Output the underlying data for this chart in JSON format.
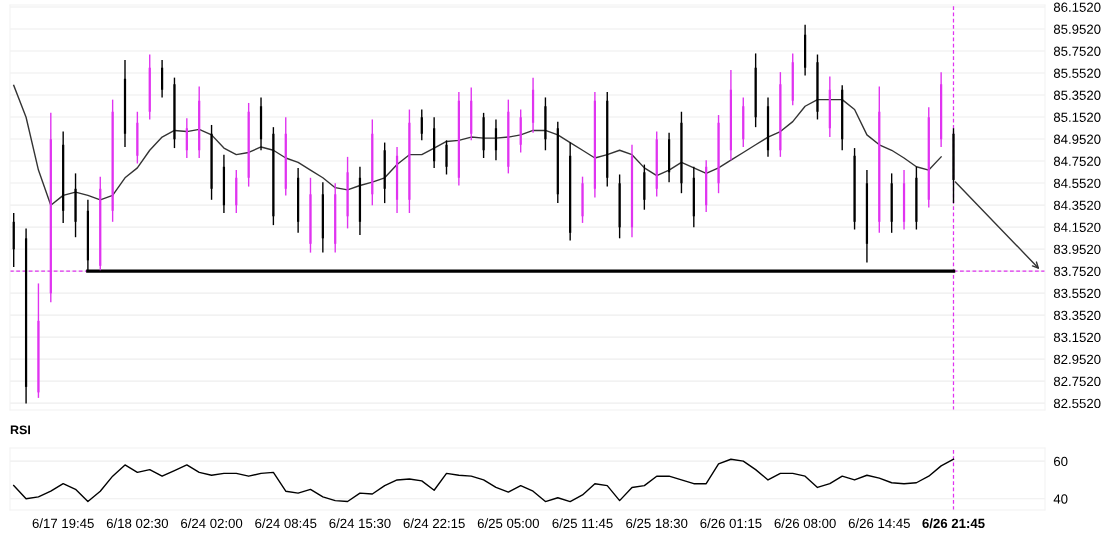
{
  "chart_data": [
    {
      "type": "candlestick",
      "categories": [
        null,
        null,
        null,
        null,
        null,
        null,
        null,
        null,
        null,
        null,
        null,
        null,
        null,
        null,
        null,
        null,
        null,
        null,
        null,
        null,
        null,
        null,
        null,
        null,
        null,
        null,
        null,
        null,
        null,
        null,
        null,
        null,
        null,
        null,
        null,
        null,
        null,
        null,
        null,
        null,
        null,
        null,
        null,
        null,
        null,
        null,
        null,
        null,
        null,
        null,
        null,
        null,
        null,
        null,
        null,
        null,
        null,
        null,
        null,
        null,
        null,
        null,
        null,
        null,
        null,
        null,
        null,
        null,
        null,
        null,
        null,
        null,
        null,
        null,
        null,
        null,
        null
      ],
      "ohlc": [
        [
          84.2,
          84.28,
          83.79,
          83.95
        ],
        [
          84.05,
          84.14,
          82.55,
          82.7
        ],
        [
          82.65,
          83.64,
          82.6,
          83.3
        ],
        [
          83.55,
          85.19,
          83.47,
          84.95
        ],
        [
          84.9,
          85.02,
          84.19,
          84.3
        ],
        [
          84.5,
          84.64,
          84.06,
          84.2
        ],
        [
          84.3,
          84.4,
          83.76,
          83.85
        ],
        [
          83.8,
          84.61,
          83.76,
          84.5
        ],
        [
          84.3,
          85.31,
          84.2,
          85.2
        ],
        [
          85.5,
          85.67,
          84.88,
          85.0
        ],
        [
          84.8,
          85.2,
          84.73,
          85.1
        ],
        [
          85.2,
          85.72,
          85.13,
          85.6
        ],
        [
          85.6,
          85.67,
          85.33,
          85.4
        ],
        [
          85.45,
          85.51,
          84.87,
          84.95
        ],
        [
          84.85,
          85.14,
          84.78,
          85.05
        ],
        [
          84.85,
          85.43,
          84.78,
          85.3
        ],
        [
          85.0,
          85.08,
          84.4,
          84.5
        ],
        [
          84.7,
          84.81,
          84.28,
          84.35
        ],
        [
          84.35,
          84.67,
          84.28,
          84.6
        ],
        [
          84.6,
          85.28,
          84.52,
          85.2
        ],
        [
          85.25,
          85.33,
          84.85,
          84.95
        ],
        [
          85.0,
          85.06,
          84.17,
          84.25
        ],
        [
          84.5,
          85.15,
          84.44,
          85.0
        ],
        [
          84.6,
          84.69,
          84.1,
          84.2
        ],
        [
          84.0,
          84.6,
          83.92,
          84.45
        ],
        [
          84.45,
          84.56,
          83.92,
          84.05
        ],
        [
          84.0,
          84.55,
          83.92,
          84.45
        ],
        [
          84.25,
          84.79,
          84.14,
          84.65
        ],
        [
          84.6,
          84.7,
          84.08,
          84.2
        ],
        [
          84.45,
          85.13,
          84.35,
          85.0
        ],
        [
          84.85,
          84.92,
          84.37,
          84.5
        ],
        [
          84.4,
          84.88,
          84.28,
          84.8
        ],
        [
          84.4,
          85.22,
          84.28,
          85.1
        ],
        [
          85.15,
          85.22,
          84.94,
          85.0
        ],
        [
          85.05,
          85.15,
          84.69,
          84.75
        ],
        [
          84.9,
          84.94,
          84.63,
          84.7
        ],
        [
          84.6,
          85.38,
          84.53,
          85.3
        ],
        [
          85.0,
          85.42,
          84.94,
          85.3
        ],
        [
          85.15,
          85.19,
          84.78,
          84.85
        ],
        [
          85.05,
          85.13,
          84.76,
          84.85
        ],
        [
          84.7,
          85.31,
          84.64,
          85.2
        ],
        [
          84.9,
          85.22,
          84.83,
          85.15
        ],
        [
          85.1,
          85.51,
          85.01,
          85.4
        ],
        [
          85.25,
          85.33,
          84.85,
          84.95
        ],
        [
          85.05,
          85.11,
          84.37,
          84.45
        ],
        [
          84.8,
          84.92,
          84.03,
          84.1
        ],
        [
          84.25,
          84.61,
          84.19,
          84.55
        ],
        [
          84.5,
          85.38,
          84.42,
          85.3
        ],
        [
          85.3,
          85.38,
          84.52,
          84.6
        ],
        [
          84.55,
          84.63,
          84.05,
          84.15
        ],
        [
          84.15,
          84.9,
          84.06,
          84.8
        ],
        [
          84.65,
          84.72,
          84.31,
          84.4
        ],
        [
          84.5,
          85.02,
          84.43,
          84.95
        ],
        [
          84.95,
          85.01,
          84.56,
          84.65
        ],
        [
          85.1,
          85.2,
          84.46,
          84.55
        ],
        [
          84.6,
          84.7,
          84.15,
          84.25
        ],
        [
          84.35,
          84.76,
          84.29,
          84.7
        ],
        [
          84.55,
          85.17,
          84.46,
          85.1
        ],
        [
          84.85,
          85.58,
          84.76,
          85.4
        ],
        [
          84.95,
          85.33,
          84.88,
          85.25
        ],
        [
          85.6,
          85.73,
          85.06,
          85.15
        ],
        [
          85.25,
          85.33,
          84.79,
          84.85
        ],
        [
          84.85,
          85.56,
          84.79,
          85.45
        ],
        [
          85.3,
          85.73,
          85.26,
          85.65
        ],
        [
          85.9,
          85.99,
          85.53,
          85.6
        ],
        [
          85.65,
          85.72,
          85.13,
          85.2
        ],
        [
          85.05,
          85.52,
          84.97,
          85.4
        ],
        [
          85.4,
          85.44,
          84.85,
          84.95
        ],
        [
          84.8,
          84.87,
          84.13,
          84.2
        ],
        [
          84.55,
          84.67,
          83.83,
          84.0
        ],
        [
          84.2,
          85.43,
          84.1,
          85.2
        ],
        [
          84.55,
          84.64,
          84.1,
          84.2
        ],
        [
          84.2,
          84.67,
          84.13,
          84.55
        ],
        [
          84.6,
          84.7,
          84.13,
          84.2
        ],
        [
          84.4,
          85.24,
          84.33,
          85.15
        ],
        [
          84.95,
          85.56,
          84.88,
          85.45
        ],
        [
          85.0,
          85.05,
          84.37,
          84.58
        ]
      ],
      "colors": [
        "#000000",
        "#000000",
        "#e033f0",
        "#e033f0",
        "#000000",
        "#000000",
        "#000000",
        "#e033f0",
        "#e033f0",
        "#000000",
        "#e033f0",
        "#e033f0",
        "#000000",
        "#000000",
        "#e033f0",
        "#e033f0",
        "#000000",
        "#000000",
        "#e033f0",
        "#e033f0",
        "#000000",
        "#000000",
        "#e033f0",
        "#000000",
        "#e033f0",
        "#000000",
        "#e033f0",
        "#e033f0",
        "#000000",
        "#e033f0",
        "#000000",
        "#e033f0",
        "#e033f0",
        "#000000",
        "#000000",
        "#000000",
        "#e033f0",
        "#e033f0",
        "#000000",
        "#000000",
        "#e033f0",
        "#e033f0",
        "#e033f0",
        "#000000",
        "#000000",
        "#000000",
        "#e033f0",
        "#e033f0",
        "#000000",
        "#000000",
        "#e033f0",
        "#000000",
        "#e033f0",
        "#000000",
        "#000000",
        "#000000",
        "#e033f0",
        "#e033f0",
        "#e033f0",
        "#e033f0",
        "#000000",
        "#000000",
        "#e033f0",
        "#e033f0",
        "#000000",
        "#000000",
        "#e033f0",
        "#000000",
        "#000000",
        "#000000",
        "#e033f0",
        "#000000",
        "#e033f0",
        "#000000",
        "#e033f0",
        "#e033f0",
        "#000000"
      ],
      "series": [
        {
          "type": "line",
          "color": "#333333",
          "values": [
            85.44,
            85.15,
            84.67,
            84.35,
            84.44,
            84.47,
            84.44,
            84.4,
            84.44,
            84.6,
            84.69,
            84.85,
            84.97,
            85.03,
            85.02,
            85.04,
            84.99,
            84.87,
            84.81,
            84.83,
            84.88,
            84.85,
            84.78,
            84.74,
            84.67,
            84.6,
            84.51,
            84.49,
            84.53,
            84.56,
            84.6,
            84.72,
            84.81,
            84.81,
            84.87,
            84.93,
            84.94,
            84.97,
            84.96,
            84.96,
            84.97,
            84.99,
            85.03,
            85.03,
            84.99,
            84.92,
            84.85,
            84.78,
            84.81,
            84.85,
            84.81,
            84.69,
            84.62,
            84.67,
            84.74,
            84.69,
            84.64,
            84.69,
            84.76,
            84.83,
            84.9,
            84.97,
            85.02,
            85.11,
            85.25,
            85.31,
            85.31,
            85.31,
            85.22,
            84.99,
            84.9,
            84.85,
            84.78,
            84.7,
            84.67,
            84.79,
            null
          ]
        },
        {
          "type": "line",
          "color": "#000000",
          "values": [
            null,
            null,
            null,
            null,
            null,
            null,
            83.752,
            83.752,
            83.752,
            83.752,
            83.752,
            83.752,
            83.752,
            83.752,
            83.752,
            83.752,
            83.752,
            83.752,
            83.752,
            83.752,
            83.752,
            83.752,
            83.752,
            83.752,
            83.752,
            83.752,
            83.752,
            83.752,
            83.752,
            83.752,
            83.752,
            83.752,
            83.752,
            83.752,
            83.752,
            83.752,
            83.752,
            83.752,
            83.752,
            83.752,
            83.752,
            83.752,
            83.752,
            83.752,
            83.752,
            83.752,
            83.752,
            83.752,
            83.752,
            83.752,
            83.752,
            83.752,
            83.752,
            83.752,
            83.752,
            83.752,
            83.752,
            83.752,
            83.752,
            83.752,
            83.752,
            83.752,
            83.752,
            83.752,
            83.752,
            83.752,
            83.752,
            83.752,
            83.752,
            83.752,
            83.752,
            83.752,
            83.752,
            83.752,
            83.752,
            83.752,
            83.752
          ]
        }
      ],
      "ylim": [
        82.49,
        86.17
      ],
      "yticks": [
        {
          "value": 82.552,
          "label": "82.5520"
        },
        {
          "value": 82.752,
          "label": "82.7520"
        },
        {
          "value": 82.952,
          "label": "82.9520"
        },
        {
          "value": 83.152,
          "label": "83.1520"
        },
        {
          "value": 83.352,
          "label": "83.3520"
        },
        {
          "value": 83.552,
          "label": "83.5520"
        },
        {
          "value": 83.752,
          "label": "83.7520"
        },
        {
          "value": 83.952,
          "label": "83.9520"
        },
        {
          "value": 84.152,
          "label": "84.1520"
        },
        {
          "value": 84.352,
          "label": "84.3520"
        },
        {
          "value": 84.552,
          "label": "84.5520"
        },
        {
          "value": 84.752,
          "label": "84.7520"
        },
        {
          "value": 84.952,
          "label": "84.9520"
        },
        {
          "value": 85.152,
          "label": "85.1520"
        },
        {
          "value": 85.352,
          "label": "85.3520"
        },
        {
          "value": 85.552,
          "label": "85.5520"
        },
        {
          "value": 85.752,
          "label": "85.7520"
        },
        {
          "value": 85.952,
          "label": "85.9520"
        },
        {
          "value": 86.152,
          "label": "86.1520"
        }
      ],
      "ref_lines": [
        {
          "axis": "y",
          "value": 83.752,
          "color": "#e033f0",
          "line_style": "dashed"
        }
      ],
      "grid": "y",
      "tick_labels": "y"
    },
    {
      "type": "line",
      "title": "RSI",
      "categories": [
        null,
        null,
        null,
        null,
        "6/17 19:45",
        null,
        null,
        null,
        null,
        null,
        "6/18 02:30",
        null,
        null,
        null,
        null,
        null,
        "6/24 02:00",
        null,
        null,
        null,
        null,
        null,
        "6/24 08:45",
        null,
        null,
        null,
        null,
        null,
        "6/24 15:30",
        null,
        null,
        null,
        null,
        null,
        "6/24 22:15",
        null,
        null,
        null,
        null,
        null,
        "6/25 05:00",
        null,
        null,
        null,
        null,
        null,
        "6/25 11:45",
        null,
        null,
        null,
        null,
        null,
        "6/25 18:30",
        null,
        null,
        null,
        null,
        null,
        "6/26 01:15",
        null,
        null,
        null,
        null,
        null,
        "6/26 08:00",
        null,
        null,
        null,
        null,
        null,
        "6/26 14:45",
        null,
        null,
        null,
        null,
        null,
        "6/26 21:45"
      ],
      "series": [
        {
          "color": "#000000",
          "values": [
            47,
            40,
            41,
            44,
            48,
            45,
            38.5,
            44,
            52,
            58,
            54,
            55.5,
            52,
            55,
            58,
            54,
            52.5,
            53.5,
            53.5,
            52,
            53.5,
            54,
            44,
            43,
            45,
            41,
            39,
            38.5,
            43,
            42.5,
            47,
            50,
            50.5,
            49.5,
            44.5,
            53.5,
            52.5,
            52,
            50,
            46,
            43.5,
            47,
            44,
            38.5,
            40.5,
            38.5,
            42,
            48,
            47,
            39,
            46,
            47,
            52,
            52,
            50,
            48,
            48,
            58.5,
            61,
            60,
            55.5,
            50,
            53.5,
            53.5,
            52,
            46,
            48,
            52,
            50,
            52.5,
            51,
            48.5,
            48,
            48.5,
            52,
            57.5,
            61
          ]
        }
      ],
      "ylim": [
        34,
        67
      ],
      "yticks": [
        40,
        60
      ],
      "ref_lines": [
        {
          "axis": "x",
          "value": "6/26 21:45",
          "color": "#e033f0",
          "line_style": "dashed"
        }
      ],
      "grid": "y"
    }
  ]
}
